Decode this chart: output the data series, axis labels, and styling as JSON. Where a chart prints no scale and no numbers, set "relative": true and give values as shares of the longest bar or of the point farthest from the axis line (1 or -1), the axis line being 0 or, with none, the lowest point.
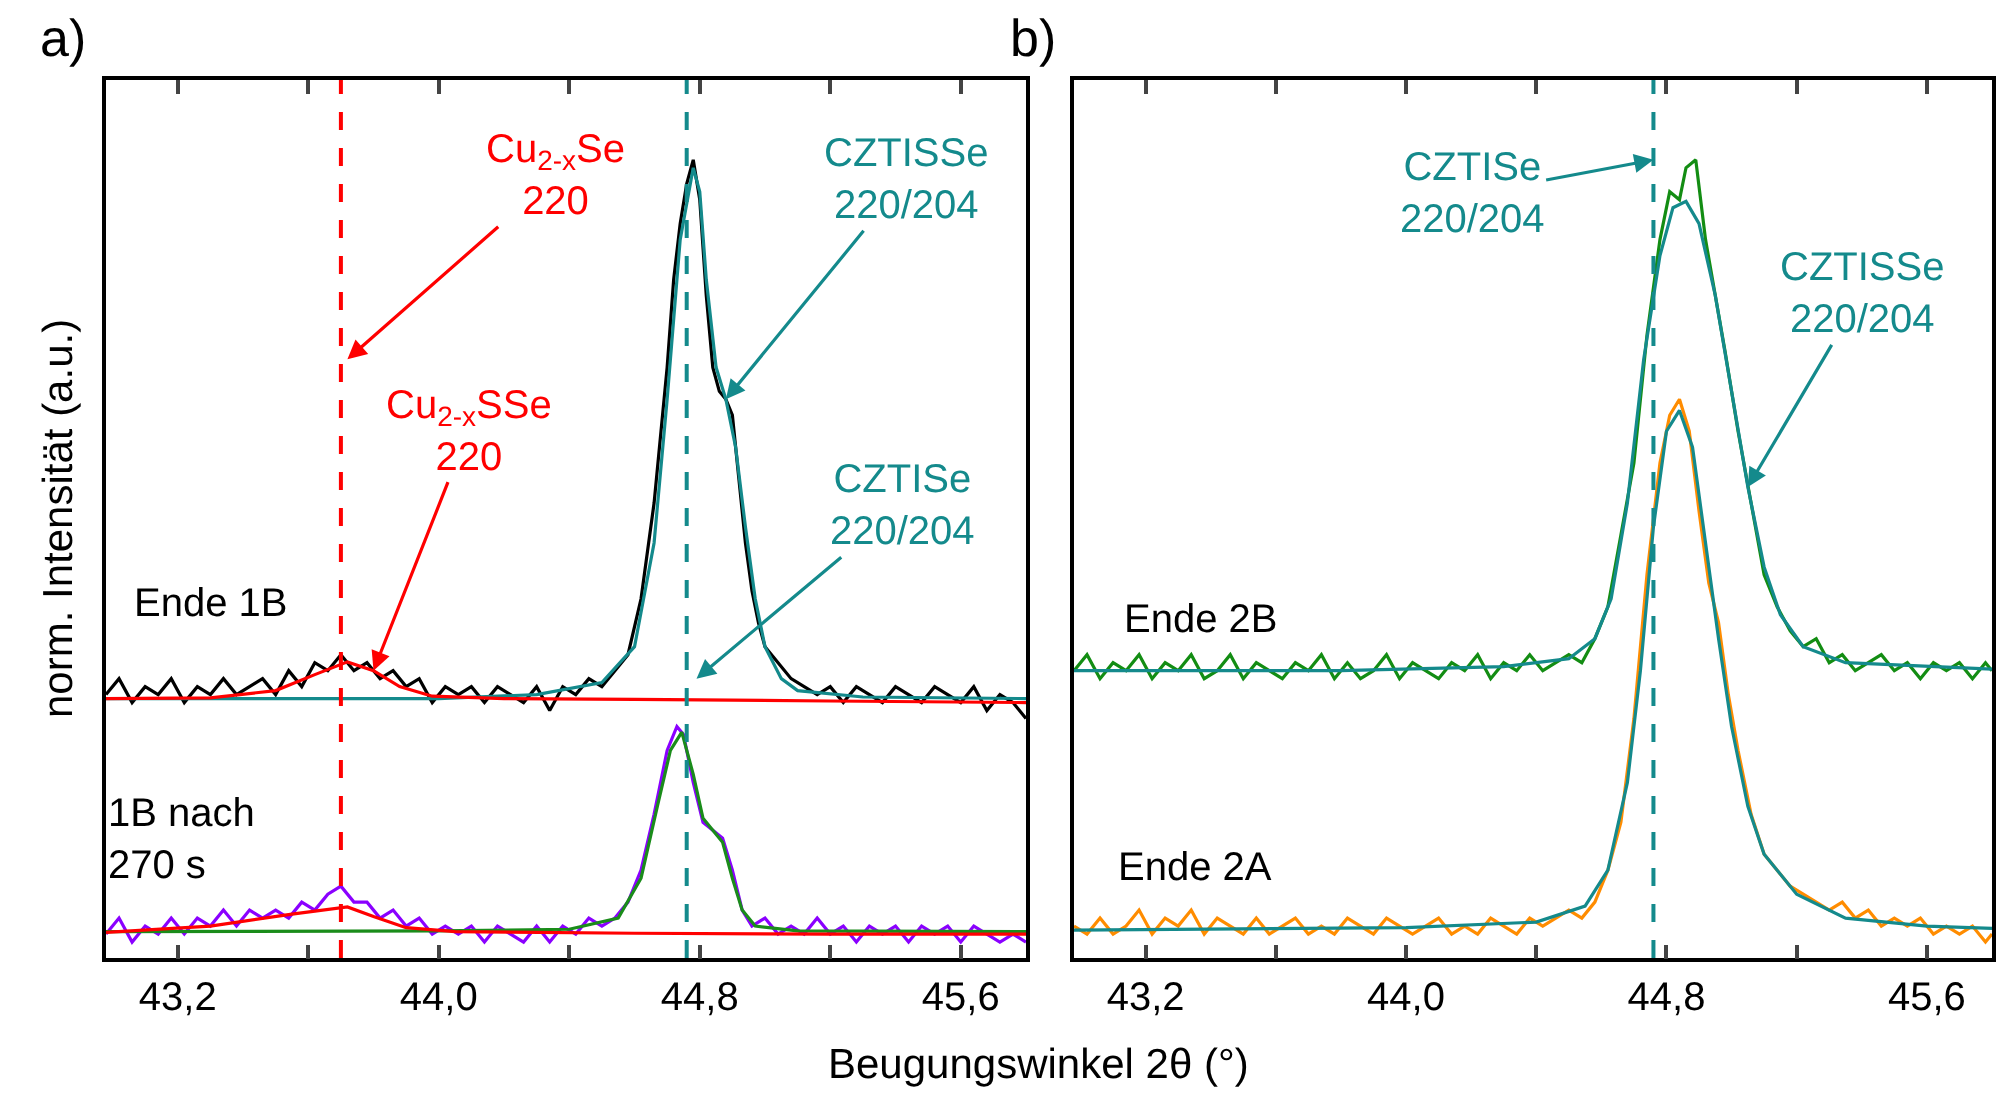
{
  "chart_data": [
    {
      "type": "line",
      "relative": true,
      "legend": false,
      "ylabel": "norm. Intensität (a.u.)",
      "xlabel": "Beugungswinkel 2θ (°)",
      "xlim": [
        42.98,
        45.8
      ],
      "xticks": [
        {
          "value": 43.2,
          "label": "43,2"
        },
        {
          "value": 43.6,
          "label": null
        },
        {
          "value": 44.0,
          "label": "44,0"
        },
        {
          "value": 44.4,
          "label": null
        },
        {
          "value": 44.8,
          "label": "44,8"
        },
        {
          "value": 45.2,
          "label": null
        },
        {
          "value": 45.6,
          "label": "45,6"
        }
      ],
      "ref_lines": [
        {
          "axis": "x",
          "value": 43.7,
          "color": "#ff0000",
          "line_style": "dashed"
        },
        {
          "axis": "x",
          "value": 44.76,
          "color": "#148a8c",
          "line_style": "dashed"
        }
      ],
      "annotations": [
        "a)",
        {
          "text": "Cu$_{2-x}$Se\n220",
          "x": 43.72,
          "y": 0.75
        },
        {
          "text": "Cu$_{2-x}$SSe\n220",
          "x": 43.8,
          "y": 0.36
        },
        {
          "text": "CZTISSe\n220/204",
          "x": 44.88,
          "y": 0.7
        },
        {
          "text": "CZTISe\n220/204",
          "x": 44.79,
          "y": 0.35
        }
      ],
      "series": [
        {
          "name": "Ende 1B",
          "color": "#000000",
          "x": [
            42.98,
            43.02,
            43.06,
            43.1,
            43.14,
            43.18,
            43.22,
            43.26,
            43.3,
            43.34,
            43.38,
            43.42,
            43.46,
            43.5,
            43.54,
            43.58,
            43.62,
            43.66,
            43.7,
            43.74,
            43.78,
            43.82,
            43.86,
            43.9,
            43.94,
            43.98,
            44.02,
            44.06,
            44.1,
            44.14,
            44.18,
            44.22,
            44.26,
            44.3,
            44.34,
            44.38,
            44.42,
            44.46,
            44.5,
            44.54,
            44.58,
            44.62,
            44.66,
            44.7,
            44.72,
            44.74,
            44.76,
            44.78,
            44.8,
            44.82,
            44.84,
            44.86,
            44.88,
            44.9,
            44.92,
            44.94,
            44.96,
            44.98,
            45.0,
            45.04,
            45.08,
            45.12,
            45.16,
            45.2,
            45.24,
            45.28,
            45.32,
            45.36,
            45.4,
            45.44,
            45.48,
            45.52,
            45.56,
            45.6,
            45.64,
            45.68,
            45.72,
            45.76,
            45.8
          ],
          "values": [
            0.33,
            0.35,
            0.32,
            0.34,
            0.33,
            0.35,
            0.32,
            0.34,
            0.33,
            0.35,
            0.33,
            0.34,
            0.35,
            0.33,
            0.36,
            0.34,
            0.37,
            0.36,
            0.38,
            0.36,
            0.37,
            0.35,
            0.36,
            0.34,
            0.35,
            0.32,
            0.34,
            0.33,
            0.34,
            0.32,
            0.34,
            0.33,
            0.32,
            0.34,
            0.31,
            0.34,
            0.33,
            0.35,
            0.34,
            0.36,
            0.38,
            0.45,
            0.57,
            0.74,
            0.85,
            0.92,
            0.97,
            1.0,
            0.95,
            0.83,
            0.74,
            0.71,
            0.7,
            0.68,
            0.6,
            0.52,
            0.46,
            0.42,
            0.39,
            0.37,
            0.35,
            0.34,
            0.33,
            0.34,
            0.32,
            0.34,
            0.33,
            0.32,
            0.34,
            0.33,
            0.32,
            0.34,
            0.33,
            0.32,
            0.34,
            0.31,
            0.33,
            0.32,
            0.3
          ]
        },
        {
          "color": "#148a8c",
          "x": [
            42.98,
            43.5,
            44.0,
            44.3,
            44.5,
            44.6,
            44.66,
            44.7,
            44.74,
            44.78,
            44.8,
            44.82,
            44.85,
            44.88,
            44.91,
            44.94,
            44.97,
            45.0,
            45.05,
            45.1,
            45.3,
            45.8
          ],
          "values": [
            0.325,
            0.325,
            0.325,
            0.33,
            0.345,
            0.39,
            0.52,
            0.7,
            0.9,
            0.99,
            0.96,
            0.85,
            0.74,
            0.7,
            0.64,
            0.54,
            0.45,
            0.39,
            0.35,
            0.335,
            0.327,
            0.325
          ]
        },
        {
          "color": "#ff0000",
          "x": [
            42.98,
            43.3,
            43.5,
            43.62,
            43.72,
            43.8,
            43.88,
            43.98,
            44.2,
            44.6,
            45.2,
            45.8
          ],
          "values": [
            0.325,
            0.326,
            0.335,
            0.355,
            0.371,
            0.36,
            0.34,
            0.328,
            0.325,
            0.324,
            0.322,
            0.32
          ]
        },
        {
          "name": "1B nach\n270 s",
          "color": "#8a00ff",
          "x": [
            42.98,
            43.02,
            43.06,
            43.1,
            43.14,
            43.18,
            43.22,
            43.26,
            43.3,
            43.34,
            43.38,
            43.42,
            43.46,
            43.5,
            43.54,
            43.58,
            43.62,
            43.66,
            43.7,
            43.74,
            43.78,
            43.82,
            43.86,
            43.9,
            43.94,
            43.98,
            44.02,
            44.06,
            44.1,
            44.14,
            44.18,
            44.22,
            44.26,
            44.3,
            44.34,
            44.38,
            44.42,
            44.46,
            44.5,
            44.54,
            44.58,
            44.62,
            44.66,
            44.7,
            44.73,
            44.75,
            44.78,
            44.81,
            44.84,
            44.87,
            44.9,
            44.93,
            44.96,
            45.0,
            45.04,
            45.08,
            45.12,
            45.16,
            45.2,
            45.24,
            45.28,
            45.32,
            45.36,
            45.4,
            45.44,
            45.48,
            45.52,
            45.56,
            45.6,
            45.64,
            45.68,
            45.72,
            45.76,
            45.8
          ],
          "values": [
            0.03,
            0.05,
            0.02,
            0.04,
            0.03,
            0.05,
            0.03,
            0.05,
            0.04,
            0.06,
            0.04,
            0.06,
            0.05,
            0.06,
            0.05,
            0.07,
            0.06,
            0.08,
            0.09,
            0.07,
            0.07,
            0.05,
            0.06,
            0.04,
            0.05,
            0.03,
            0.04,
            0.03,
            0.04,
            0.02,
            0.04,
            0.03,
            0.02,
            0.04,
            0.02,
            0.04,
            0.03,
            0.05,
            0.04,
            0.05,
            0.07,
            0.11,
            0.18,
            0.26,
            0.29,
            0.28,
            0.22,
            0.17,
            0.16,
            0.15,
            0.11,
            0.06,
            0.04,
            0.05,
            0.03,
            0.04,
            0.03,
            0.05,
            0.03,
            0.04,
            0.02,
            0.04,
            0.03,
            0.04,
            0.02,
            0.04,
            0.03,
            0.04,
            0.02,
            0.04,
            0.03,
            0.02,
            0.03,
            0.02
          ]
        },
        {
          "color": "#1a8c1a",
          "x": [
            42.98,
            44.0,
            44.4,
            44.55,
            44.62,
            44.67,
            44.71,
            44.745,
            44.78,
            44.81,
            44.84,
            44.87,
            44.9,
            44.93,
            44.97,
            45.1,
            45.8
          ],
          "values": [
            0.033,
            0.034,
            0.036,
            0.05,
            0.1,
            0.19,
            0.26,
            0.283,
            0.23,
            0.175,
            0.16,
            0.145,
            0.1,
            0.06,
            0.04,
            0.034,
            0.033
          ]
        },
        {
          "color": "#ff0000",
          "x": [
            42.98,
            43.3,
            43.55,
            43.72,
            43.8,
            43.9,
            44.05,
            44.6,
            45.2,
            45.8
          ],
          "values": [
            0.032,
            0.04,
            0.055,
            0.064,
            0.052,
            0.038,
            0.033,
            0.031,
            0.03,
            0.03
          ]
        }
      ]
    },
    {
      "type": "line",
      "relative": true,
      "legend": false,
      "xlim": [
        42.98,
        45.8
      ],
      "xticks": [
        {
          "value": 43.2,
          "label": "43,2"
        },
        {
          "value": 43.6,
          "label": null
        },
        {
          "value": 44.0,
          "label": "44,0"
        },
        {
          "value": 44.4,
          "label": null
        },
        {
          "value": 44.8,
          "label": "44,8"
        },
        {
          "value": 45.2,
          "label": null
        },
        {
          "value": 45.6,
          "label": "45,6"
        }
      ],
      "ref_lines": [
        {
          "axis": "x",
          "value": 44.76,
          "color": "#148a8c",
          "line_style": "dashed"
        }
      ],
      "annotations": [
        "b)",
        {
          "text": "CZTISe\n220/204",
          "x": 44.76,
          "y": 1.0
        },
        {
          "text": "CZTISSe\n220/204",
          "x": 45.05,
          "y": 0.59
        }
      ],
      "series": [
        {
          "name": "Ende 2B",
          "color": "#138d13",
          "x": [
            42.98,
            43.02,
            43.06,
            43.1,
            43.14,
            43.18,
            43.22,
            43.26,
            43.3,
            43.34,
            43.38,
            43.42,
            43.46,
            43.5,
            43.54,
            43.58,
            43.62,
            43.66,
            43.7,
            43.74,
            43.78,
            43.82,
            43.86,
            43.9,
            43.94,
            43.98,
            44.02,
            44.06,
            44.1,
            44.14,
            44.18,
            44.22,
            44.26,
            44.3,
            44.34,
            44.38,
            44.42,
            44.46,
            44.5,
            44.54,
            44.58,
            44.62,
            44.66,
            44.7,
            44.74,
            44.78,
            44.81,
            44.84,
            44.86,
            44.89,
            44.92,
            44.95,
            44.98,
            45.02,
            45.06,
            45.1,
            45.14,
            45.18,
            45.22,
            45.26,
            45.3,
            45.34,
            45.38,
            45.42,
            45.46,
            45.5,
            45.54,
            45.58,
            45.62,
            45.66,
            45.7,
            45.74,
            45.78,
            45.8
          ],
          "values": [
            0.36,
            0.38,
            0.35,
            0.37,
            0.36,
            0.38,
            0.35,
            0.37,
            0.36,
            0.38,
            0.35,
            0.36,
            0.38,
            0.35,
            0.37,
            0.36,
            0.35,
            0.37,
            0.36,
            0.38,
            0.35,
            0.37,
            0.35,
            0.36,
            0.38,
            0.35,
            0.37,
            0.36,
            0.35,
            0.37,
            0.36,
            0.38,
            0.35,
            0.37,
            0.36,
            0.38,
            0.36,
            0.37,
            0.38,
            0.37,
            0.4,
            0.44,
            0.53,
            0.62,
            0.78,
            0.9,
            0.96,
            0.95,
            0.99,
            1.0,
            0.9,
            0.83,
            0.76,
            0.66,
            0.57,
            0.48,
            0.44,
            0.41,
            0.39,
            0.4,
            0.37,
            0.38,
            0.36,
            0.37,
            0.38,
            0.36,
            0.37,
            0.35,
            0.37,
            0.36,
            0.37,
            0.35,
            0.37,
            0.36
          ]
        },
        {
          "color": "#148a8c",
          "x": [
            42.98,
            43.8,
            44.3,
            44.5,
            44.58,
            44.63,
            44.68,
            44.73,
            44.78,
            44.82,
            44.86,
            44.9,
            44.95,
            45.0,
            45.05,
            45.1,
            45.15,
            45.22,
            45.35,
            45.8
          ],
          "values": [
            0.36,
            0.36,
            0.365,
            0.375,
            0.4,
            0.45,
            0.57,
            0.75,
            0.88,
            0.94,
            0.948,
            0.92,
            0.83,
            0.71,
            0.59,
            0.49,
            0.43,
            0.39,
            0.37,
            0.362
          ]
        },
        {
          "name": "Ende 2A",
          "color": "#ff8c00",
          "x": [
            42.98,
            43.02,
            43.06,
            43.1,
            43.14,
            43.18,
            43.22,
            43.26,
            43.3,
            43.34,
            43.38,
            43.42,
            43.46,
            43.5,
            43.54,
            43.58,
            43.62,
            43.66,
            43.7,
            43.74,
            43.78,
            43.82,
            43.86,
            43.9,
            43.94,
            43.98,
            44.02,
            44.06,
            44.1,
            44.14,
            44.18,
            44.22,
            44.26,
            44.3,
            44.34,
            44.38,
            44.42,
            44.46,
            44.5,
            44.54,
            44.58,
            44.62,
            44.66,
            44.7,
            44.74,
            44.78,
            44.81,
            44.84,
            44.87,
            44.9,
            44.93,
            44.96,
            44.99,
            45.02,
            45.06,
            45.1,
            45.14,
            45.18,
            45.22,
            45.26,
            45.3,
            45.34,
            45.38,
            45.42,
            45.46,
            45.5,
            45.54,
            45.58,
            45.62,
            45.66,
            45.7,
            45.74,
            45.78,
            45.8
          ],
          "values": [
            0.04,
            0.03,
            0.05,
            0.03,
            0.04,
            0.06,
            0.03,
            0.05,
            0.04,
            0.06,
            0.03,
            0.05,
            0.04,
            0.03,
            0.05,
            0.03,
            0.04,
            0.05,
            0.03,
            0.04,
            0.03,
            0.05,
            0.04,
            0.03,
            0.05,
            0.04,
            0.03,
            0.04,
            0.05,
            0.03,
            0.04,
            0.03,
            0.05,
            0.04,
            0.03,
            0.05,
            0.04,
            0.05,
            0.06,
            0.05,
            0.07,
            0.11,
            0.17,
            0.3,
            0.48,
            0.62,
            0.68,
            0.7,
            0.66,
            0.56,
            0.47,
            0.42,
            0.33,
            0.26,
            0.18,
            0.13,
            0.11,
            0.09,
            0.08,
            0.07,
            0.06,
            0.07,
            0.05,
            0.06,
            0.04,
            0.05,
            0.04,
            0.05,
            0.03,
            0.04,
            0.03,
            0.04,
            0.02,
            0.03
          ]
        },
        {
          "color": "#148a8c",
          "x": [
            42.98,
            44.0,
            44.4,
            44.55,
            44.62,
            44.68,
            44.72,
            44.76,
            44.8,
            44.84,
            44.88,
            44.92,
            44.96,
            45.0,
            45.05,
            45.1,
            45.2,
            45.35,
            45.6,
            45.8
          ],
          "values": [
            0.035,
            0.038,
            0.045,
            0.065,
            0.11,
            0.22,
            0.36,
            0.54,
            0.66,
            0.686,
            0.64,
            0.52,
            0.4,
            0.29,
            0.19,
            0.13,
            0.08,
            0.05,
            0.04,
            0.037
          ]
        }
      ]
    }
  ]
}
